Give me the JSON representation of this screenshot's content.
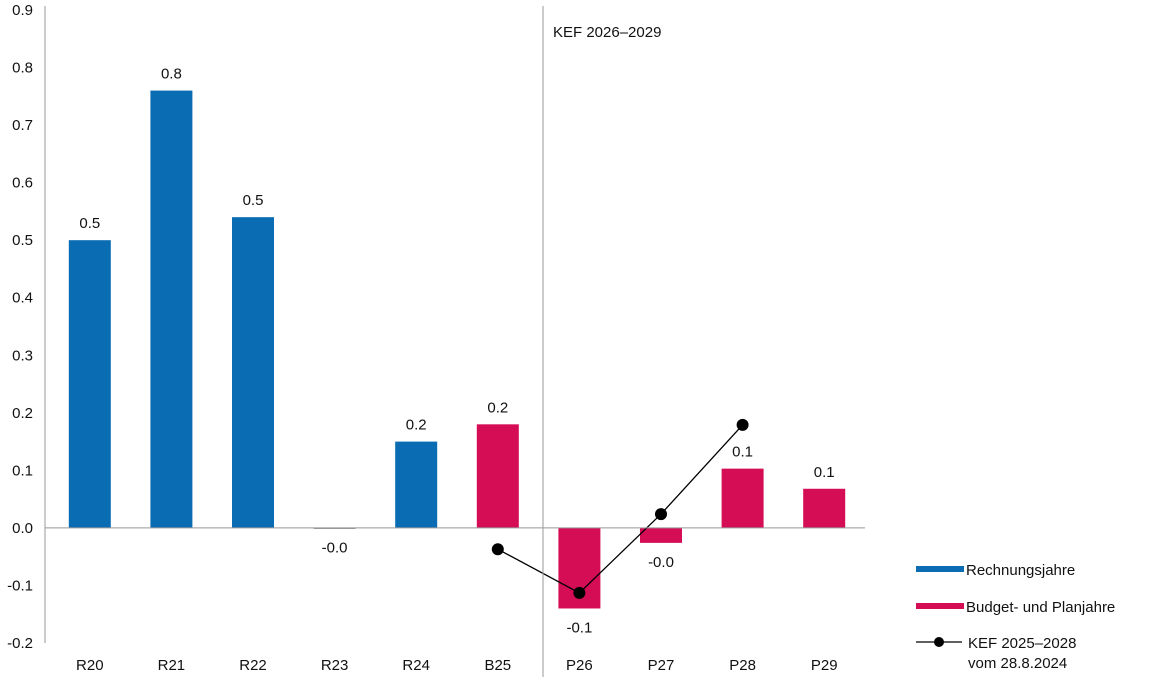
{
  "chart_data": {
    "type": "bar",
    "categories": [
      "R20",
      "R21",
      "R22",
      "R23",
      "R24",
      "B25",
      "P26",
      "P27",
      "P28",
      "P29"
    ],
    "series": [
      {
        "name": "Rechnungsjahre",
        "color": "#0a6db4",
        "values": [
          0.5,
          0.76,
          0.54,
          -0.001,
          0.15,
          null,
          null,
          null,
          null,
          null
        ]
      },
      {
        "name": "Budget- und Planjahre",
        "color": "#d40d55",
        "values": [
          null,
          null,
          null,
          null,
          null,
          0.18,
          -0.14,
          -0.026,
          0.103,
          0.068
        ]
      },
      {
        "name": "KEF 2025–2028",
        "name_line2": "vom 28.8.2024",
        "type": "line",
        "color": "#000000",
        "values": [
          null,
          null,
          null,
          null,
          null,
          -0.037,
          -0.113,
          0.024,
          0.179,
          null
        ]
      }
    ],
    "data_labels": [
      "0.5",
      "0.8",
      "0.5",
      "-0.0",
      "0.2",
      "0.2",
      "-0.1",
      "-0.0",
      "0.1",
      "0.1"
    ],
    "ylim": [
      -0.2,
      0.9
    ],
    "yticks": [
      "-0.2",
      "-0.1",
      "0.0",
      "0.1",
      "0.2",
      "0.3",
      "0.4",
      "0.5",
      "0.6",
      "0.7",
      "0.8",
      "0.9"
    ],
    "annotation": "KEF 2026–2029",
    "grid": false,
    "legend_position": "bottom-right"
  }
}
